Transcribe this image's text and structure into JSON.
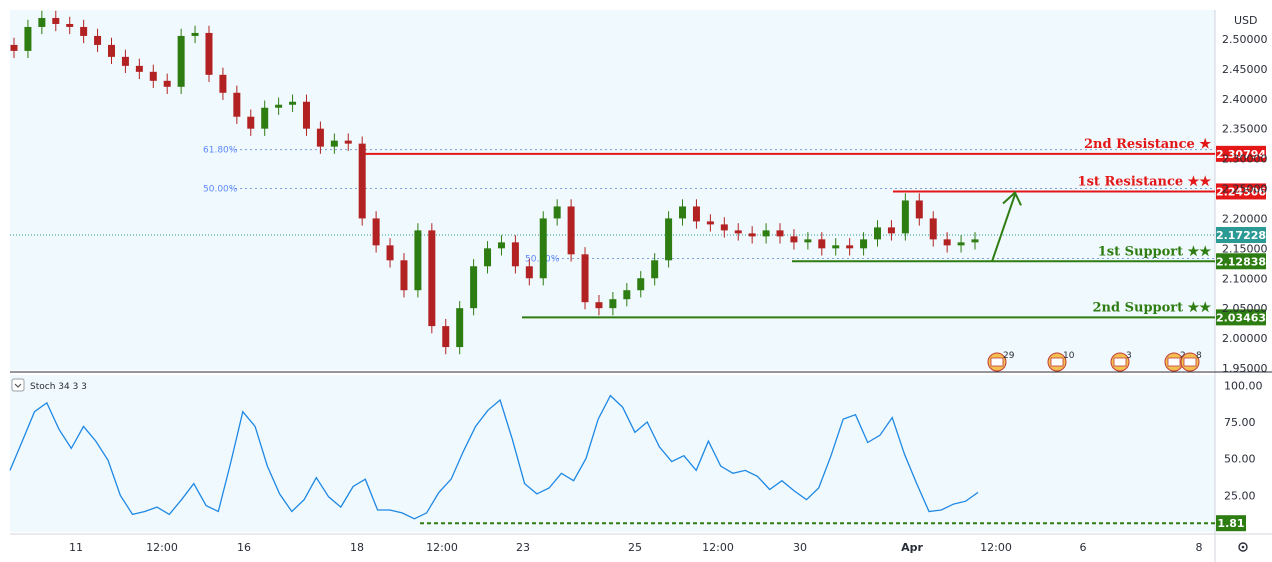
{
  "chart_data": [
    {
      "type": "candlestick",
      "currency": "USD",
      "y_axis_ticks": [
        "2.50000",
        "2.45000",
        "2.40000",
        "2.35000",
        "2.30000",
        "2.25000",
        "2.20000",
        "2.15000",
        "2.10000",
        "2.05000",
        "2.00000",
        "1.95000"
      ],
      "x_axis_ticks": [
        "11",
        "12:00",
        "16",
        "18",
        "12:00",
        "23",
        "25",
        "12:00",
        "30",
        "Apr",
        "12:00",
        "6",
        "8"
      ],
      "ylim": [
        1.95,
        2.545
      ],
      "price_series_approx": [
        2.48,
        2.52,
        2.535,
        2.525,
        2.52,
        2.505,
        2.49,
        2.47,
        2.455,
        2.445,
        2.43,
        2.42,
        2.505,
        2.51,
        2.44,
        2.41,
        2.37,
        2.35,
        2.385,
        2.39,
        2.395,
        2.35,
        2.32,
        2.33,
        2.325,
        2.2,
        2.155,
        2.13,
        2.08,
        2.18,
        2.02,
        1.985,
        2.05,
        2.12,
        2.15,
        2.16,
        2.12,
        2.1,
        2.2,
        2.22,
        2.14,
        2.06,
        2.05,
        2.065,
        2.08,
        2.1,
        2.13,
        2.2,
        2.22,
        2.195,
        2.19,
        2.18,
        2.175,
        2.17,
        2.18,
        2.17,
        2.16,
        2.165,
        2.15,
        2.155,
        2.15,
        2.165,
        2.185,
        2.175,
        2.23,
        2.2,
        2.165,
        2.155,
        2.16,
        2.165
      ],
      "current_price": "2.17228",
      "levels": [
        {
          "label": "2nd Resistance ★",
          "value": "2.30794",
          "color": "#e31717"
        },
        {
          "label": "1st Resistance ★★",
          "value": "2.24506",
          "color": "#e31717"
        },
        {
          "label": "1st Support ★★",
          "value": "2.12838",
          "color": "#2e7d12"
        },
        {
          "label": "2nd Support ★★",
          "value": "2.03463",
          "color": "#2e7d12"
        }
      ],
      "fib_labels": [
        "61.80%",
        "50.00%",
        "50.00%"
      ],
      "event_badges": [
        "29",
        "10",
        "3",
        "2",
        "8"
      ]
    },
    {
      "type": "line",
      "title": "Stoch 34 3 3",
      "y_axis_ticks": [
        "100.00",
        "75.00",
        "50.00",
        "25.00"
      ],
      "ylim": [
        0,
        105
      ],
      "values": [
        42,
        62,
        82,
        88,
        70,
        57,
        72,
        62,
        49,
        25,
        12,
        14,
        17,
        12,
        22,
        33,
        18,
        14,
        47,
        82,
        72,
        45,
        26,
        14,
        22,
        37,
        24,
        17,
        31,
        36,
        15,
        15,
        13,
        9,
        13,
        27,
        36,
        55,
        72,
        83,
        90,
        63,
        33,
        26,
        30,
        40,
        35,
        50,
        77,
        93,
        85,
        68,
        75,
        58,
        48,
        52,
        42,
        62,
        45,
        40,
        42,
        38,
        29,
        35,
        28,
        22,
        30,
        52,
        77,
        80,
        61,
        66,
        78,
        53,
        33,
        14,
        15,
        19,
        21,
        27
      ],
      "threshold": "1.81"
    }
  ],
  "colors": {
    "background": "#f0f9fd",
    "resistance": "#e31717",
    "support": "#2e7d12",
    "current": "#2c9a94",
    "stoch": "#1e88e5",
    "candle_up": "#2e7d12",
    "candle_down": "#b22222"
  },
  "icons": {
    "indicator_collapse": "chevron-down-icon",
    "settings": "gear-icon",
    "event_badge": "us-flag-icon"
  }
}
